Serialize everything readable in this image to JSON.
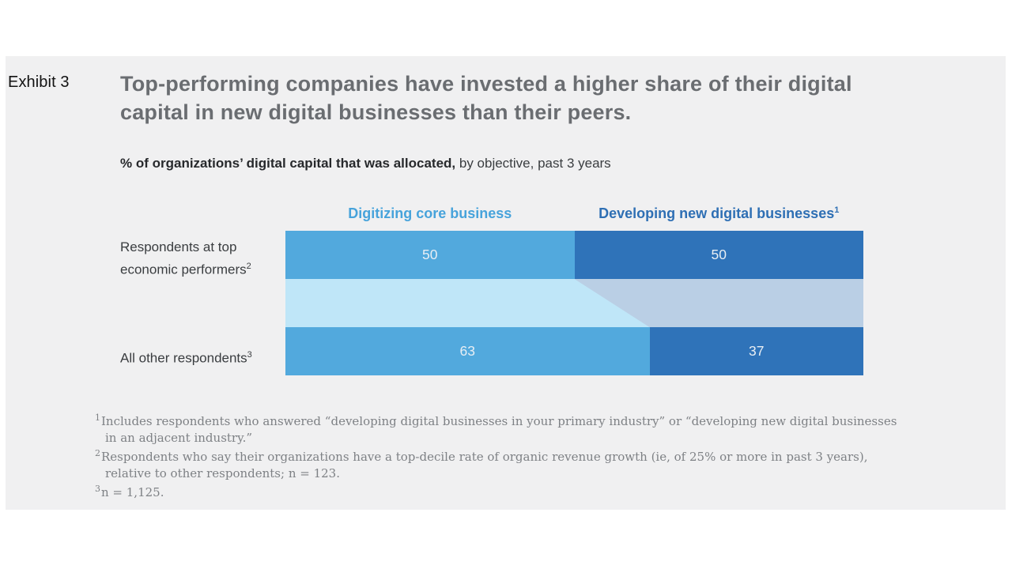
{
  "exhibit_label": "Exhibit 3",
  "title": "Top-performing companies have invested a higher share of their digital capital in new digital businesses than their peers.",
  "subtitle": {
    "bold": "% of organizations’ digital capital that was allocated,",
    "rest": " by objective, past 3 years"
  },
  "chart_data": {
    "type": "bar",
    "subtype": "horizontal-stacked-100pct-with-flow",
    "title": "% of organizations’ digital capital that was allocated, by objective, past 3 years",
    "categories": [
      "Respondents at top economic performers",
      "All other respondents"
    ],
    "category_sups": [
      "2",
      "3"
    ],
    "series": [
      {
        "name": "Digitizing core business",
        "sup": "",
        "values": [
          50,
          63
        ],
        "color": "#52A9DD",
        "header_color": "#47A3DB",
        "flow_color": "#BFE6F8"
      },
      {
        "name": "Developing new digital businesses",
        "sup": "1",
        "values": [
          50,
          37
        ],
        "color": "#2F73B9",
        "header_color": "#2E6FB4",
        "flow_color": "#BACFE5"
      }
    ],
    "value_label_color": "#E8EEF4",
    "xlim": [
      0,
      100
    ],
    "grid": false,
    "legend_position": "top"
  },
  "rows": [
    {
      "label": "Respondents at top economic performers",
      "sup": "2"
    },
    {
      "label": "All other respondents",
      "sup": "3"
    }
  ],
  "footnotes": [
    {
      "sup": "1",
      "text": "Includes respondents who answered “developing digital businesses in your primary industry” or “developing new digital businesses in an adjacent industry.”"
    },
    {
      "sup": "2",
      "text": "Respondents who say their organizations have a top-decile rate of organic revenue growth (ie, of 25% or more in past 3 years), relative to other respondents; n = 123."
    },
    {
      "sup": "3",
      "text": "n = 1,125."
    }
  ]
}
